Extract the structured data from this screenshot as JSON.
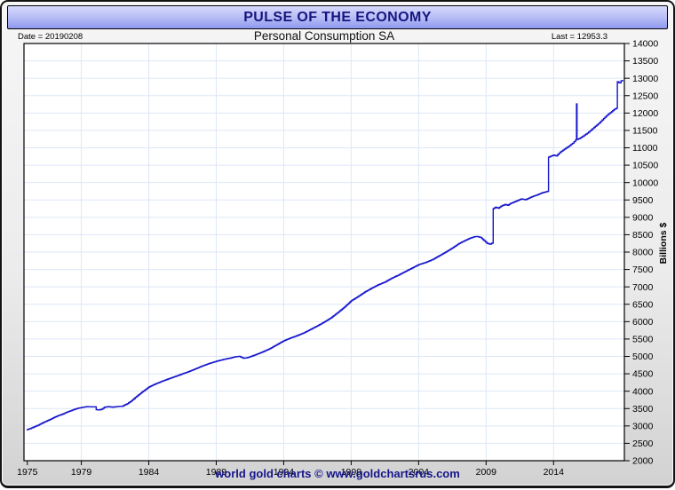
{
  "window": {
    "title": "PULSE OF THE ECONOMY",
    "date_label": "Date = 20190208",
    "subtitle": "Personal Consumption SA",
    "last_label": "Last = 12953.3",
    "footer": "world gold charts © www.goldchartsrus.com"
  },
  "colors": {
    "line": "#1414cc",
    "grid": "#dde7f7",
    "header_text": "#16167f",
    "footer_text": "#15158a",
    "axis_text": "#000000",
    "header_bg_top": "#d6d9fc",
    "header_bg_bottom": "#8e97ee",
    "plot_bg": "#ffffff"
  },
  "chart_data": {
    "type": "line",
    "title": "Personal Consumption SA",
    "xlabel": "",
    "ylabel": "Billions $",
    "grid": true,
    "legend": false,
    "x_range": [
      1974.75,
      2019.25
    ],
    "y_range": [
      2000,
      14000
    ],
    "y_tick_step": 500,
    "y_ticks": [
      2000,
      2500,
      3000,
      3500,
      4000,
      4500,
      5000,
      5500,
      6000,
      6500,
      7000,
      7500,
      8000,
      8500,
      9000,
      9500,
      10000,
      10500,
      11000,
      11500,
      12000,
      12500,
      13000,
      13500,
      14000
    ],
    "x_ticks": [
      1975,
      1979,
      1984,
      1989,
      1994,
      1999,
      2004,
      2009,
      2014
    ],
    "last_value": 12953.3,
    "series": [
      {
        "name": "Personal Consumption SA",
        "points": [
          [
            1974.95,
            2890
          ],
          [
            1975.2,
            2925
          ],
          [
            1975.5,
            2975
          ],
          [
            1975.8,
            3025
          ],
          [
            1976.1,
            3085
          ],
          [
            1976.4,
            3140
          ],
          [
            1976.7,
            3190
          ],
          [
            1977.0,
            3250
          ],
          [
            1977.3,
            3300
          ],
          [
            1977.6,
            3340
          ],
          [
            1977.9,
            3395
          ],
          [
            1978.2,
            3435
          ],
          [
            1978.5,
            3480
          ],
          [
            1978.8,
            3515
          ],
          [
            1979.0,
            3530
          ],
          [
            1979.4,
            3555
          ],
          [
            1979.7,
            3550
          ],
          [
            1979.95,
            3550
          ],
          [
            1980.1,
            3465
          ],
          [
            1980.3,
            3460
          ],
          [
            1980.5,
            3480
          ],
          [
            1980.7,
            3540
          ],
          [
            1981.0,
            3555
          ],
          [
            1981.3,
            3540
          ],
          [
            1981.7,
            3560
          ],
          [
            1982.0,
            3565
          ],
          [
            1982.4,
            3640
          ],
          [
            1982.7,
            3720
          ],
          [
            1983.0,
            3820
          ],
          [
            1983.5,
            3975
          ],
          [
            1984.0,
            4120
          ],
          [
            1984.5,
            4210
          ],
          [
            1985.0,
            4290
          ],
          [
            1985.5,
            4360
          ],
          [
            1986.0,
            4430
          ],
          [
            1986.5,
            4500
          ],
          [
            1987.0,
            4570
          ],
          [
            1987.5,
            4650
          ],
          [
            1988.0,
            4730
          ],
          [
            1988.5,
            4800
          ],
          [
            1989.0,
            4860
          ],
          [
            1989.5,
            4910
          ],
          [
            1990.0,
            4950
          ],
          [
            1990.4,
            4990
          ],
          [
            1990.7,
            5000
          ],
          [
            1991.0,
            4950
          ],
          [
            1991.25,
            4958
          ],
          [
            1991.5,
            4990
          ],
          [
            1992.0,
            5060
          ],
          [
            1992.5,
            5140
          ],
          [
            1993.0,
            5230
          ],
          [
            1993.5,
            5340
          ],
          [
            1994.0,
            5450
          ],
          [
            1994.5,
            5530
          ],
          [
            1995.0,
            5600
          ],
          [
            1995.5,
            5680
          ],
          [
            1996.0,
            5780
          ],
          [
            1996.5,
            5880
          ],
          [
            1997.0,
            5990
          ],
          [
            1997.5,
            6110
          ],
          [
            1998.0,
            6260
          ],
          [
            1998.5,
            6420
          ],
          [
            1999.0,
            6600
          ],
          [
            1999.5,
            6720
          ],
          [
            2000.0,
            6850
          ],
          [
            2000.5,
            6960
          ],
          [
            2001.0,
            7060
          ],
          [
            2001.5,
            7140
          ],
          [
            2002.0,
            7250
          ],
          [
            2002.5,
            7340
          ],
          [
            2003.0,
            7440
          ],
          [
            2003.5,
            7540
          ],
          [
            2004.0,
            7640
          ],
          [
            2004.5,
            7700
          ],
          [
            2005.0,
            7780
          ],
          [
            2005.5,
            7890
          ],
          [
            2006.0,
            8000
          ],
          [
            2006.5,
            8120
          ],
          [
            2007.0,
            8250
          ],
          [
            2007.4,
            8330
          ],
          [
            2007.8,
            8400
          ],
          [
            2008.1,
            8440
          ],
          [
            2008.35,
            8450
          ],
          [
            2008.6,
            8420
          ],
          [
            2008.85,
            8330
          ],
          [
            2009.05,
            8255
          ],
          [
            2009.25,
            8230
          ],
          [
            2009.4,
            8255
          ],
          [
            2009.49,
            8260
          ],
          [
            2009.53,
            9250
          ],
          [
            2009.7,
            9290
          ],
          [
            2009.9,
            9265
          ],
          [
            2010.1,
            9320
          ],
          [
            2010.4,
            9370
          ],
          [
            2010.6,
            9345
          ],
          [
            2010.8,
            9400
          ],
          [
            2011.0,
            9430
          ],
          [
            2011.3,
            9480
          ],
          [
            2011.6,
            9530
          ],
          [
            2011.9,
            9505
          ],
          [
            2012.2,
            9560
          ],
          [
            2012.5,
            9610
          ],
          [
            2012.8,
            9650
          ],
          [
            2013.1,
            9700
          ],
          [
            2013.4,
            9730
          ],
          [
            2013.58,
            9750
          ],
          [
            2013.63,
            10730
          ],
          [
            2013.8,
            10760
          ],
          [
            2014.0,
            10790
          ],
          [
            2014.2,
            10765
          ],
          [
            2014.5,
            10880
          ],
          [
            2014.8,
            10960
          ],
          [
            2015.1,
            11040
          ],
          [
            2015.4,
            11130
          ],
          [
            2015.63,
            11220
          ],
          [
            2015.68,
            11235
          ],
          [
            2015.7,
            12260
          ],
          [
            2015.74,
            11240
          ],
          [
            2015.95,
            11275
          ],
          [
            2016.2,
            11340
          ],
          [
            2016.5,
            11420
          ],
          [
            2016.8,
            11520
          ],
          [
            2017.1,
            11620
          ],
          [
            2017.4,
            11720
          ],
          [
            2017.7,
            11840
          ],
          [
            2018.0,
            11950
          ],
          [
            2018.3,
            12040
          ],
          [
            2018.55,
            12120
          ],
          [
            2018.68,
            12140
          ],
          [
            2018.73,
            12900
          ],
          [
            2018.85,
            12870
          ],
          [
            2019.0,
            12925
          ],
          [
            2019.12,
            12953.3
          ]
        ]
      }
    ]
  }
}
